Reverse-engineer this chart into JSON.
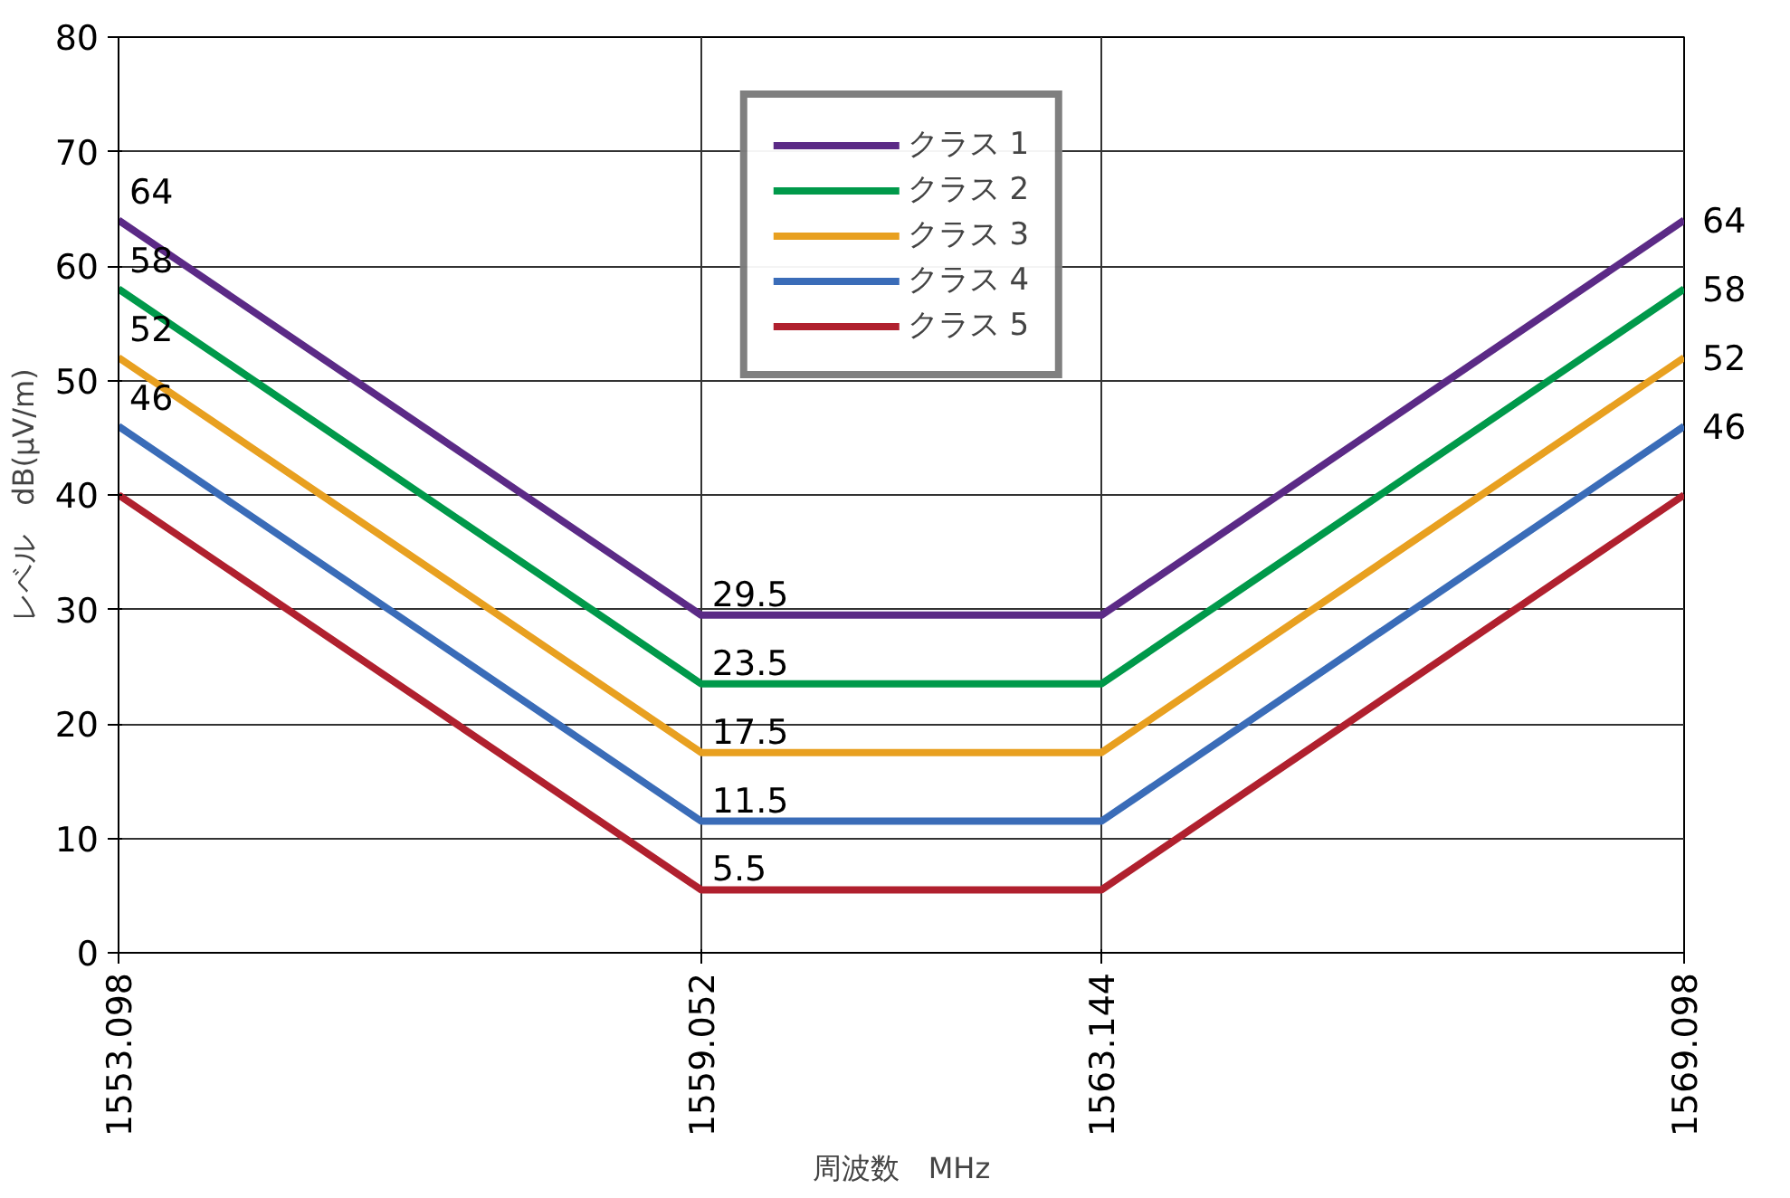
{
  "chart_data": {
    "type": "line",
    "xlabel": "周波数　MHz",
    "ylabel": "レベル　dB(μV/m)",
    "x": [
      1553.098,
      1559.052,
      1563.144,
      1569.098
    ],
    "series": [
      {
        "name": "クラス 1",
        "color": "#5b2a86",
        "values": [
          64,
          29.5,
          29.5,
          64
        ]
      },
      {
        "name": "クラス 2",
        "color": "#00994a",
        "values": [
          58,
          23.5,
          23.5,
          58
        ]
      },
      {
        "name": "クラス 3",
        "color": "#e8a020",
        "values": [
          52,
          17.5,
          17.5,
          52
        ]
      },
      {
        "name": "クラス 4",
        "color": "#3a6cb8",
        "values": [
          46,
          11.5,
          11.5,
          46
        ]
      },
      {
        "name": "クラス 5",
        "color": "#b0202e",
        "values": [
          40,
          5.5,
          5.5,
          40
        ]
      }
    ],
    "xlim": [
      1553.098,
      1569.098
    ],
    "xticks": [
      1553.098,
      1559.052,
      1563.144,
      1569.098
    ],
    "ylim": [
      0,
      80
    ],
    "yticks": [
      0,
      10,
      20,
      30,
      40,
      50,
      60,
      70,
      80
    ],
    "grid": true,
    "legend": "top",
    "marker": "none",
    "line_style": "solid",
    "annotations": [
      {
        "text": "64",
        "x": 1553.098,
        "y": 64
      },
      {
        "text": "58",
        "x": 1553.098,
        "y": 58
      },
      {
        "text": "52",
        "x": 1553.098,
        "y": 52
      },
      {
        "text": "46",
        "x": 1553.098,
        "y": 46
      },
      {
        "text": "29.5",
        "x": 1559.052,
        "y": 29.5
      },
      {
        "text": "23.5",
        "x": 1559.052,
        "y": 23.5
      },
      {
        "text": "17.5",
        "x": 1559.052,
        "y": 17.5
      },
      {
        "text": "11.5",
        "x": 1559.052,
        "y": 11.5
      },
      {
        "text": "5.5",
        "x": 1559.052,
        "y": 5.5
      },
      {
        "text": "64",
        "x": 1569.098,
        "y": 64
      },
      {
        "text": "58",
        "x": 1569.098,
        "y": 58
      },
      {
        "text": "52",
        "x": 1569.098,
        "y": 52
      },
      {
        "text": "46",
        "x": 1569.098,
        "y": 46
      }
    ]
  }
}
